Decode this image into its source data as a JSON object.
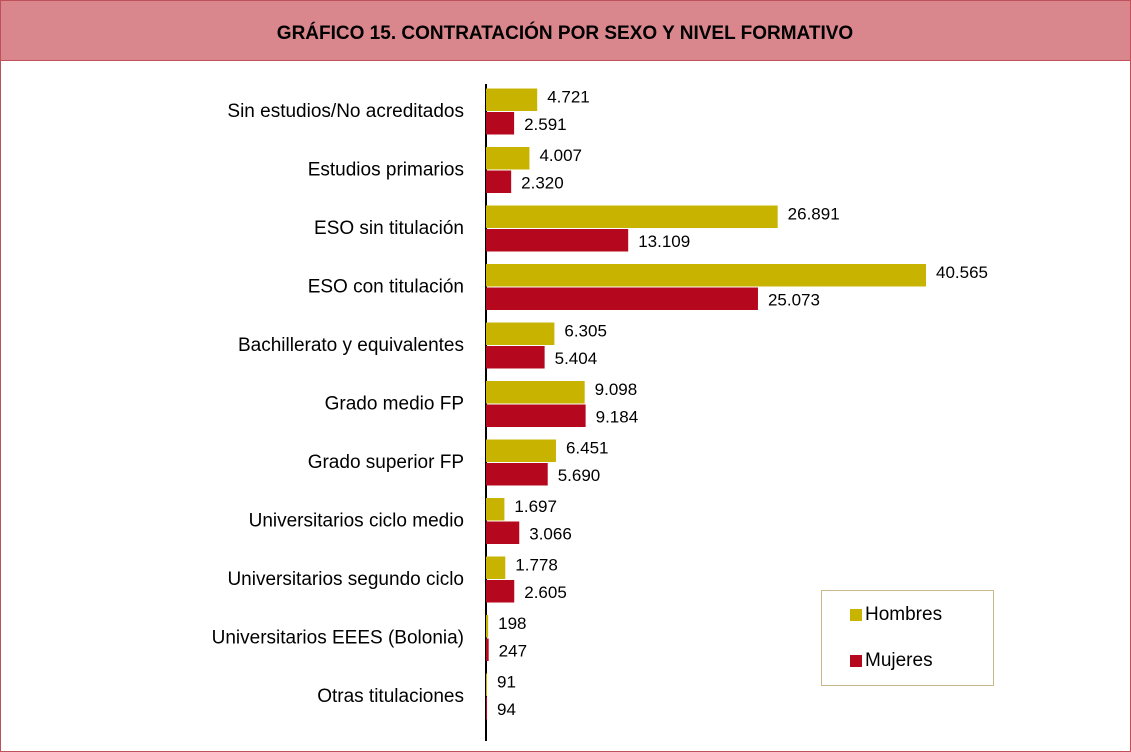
{
  "chart_data": {
    "type": "bar",
    "orientation": "horizontal",
    "title": "GRÁFICO 15. CONTRATACIÓN POR SEXO Y NIVEL FORMATIVO",
    "categories": [
      "Sin estudios/No acreditados",
      "Estudios primarios",
      "ESO sin titulación",
      "ESO con titulación",
      "Bachillerato y equivalentes",
      "Grado medio FP",
      "Grado superior FP",
      "Universitarios ciclo medio",
      "Universitarios segundo ciclo",
      "Universitarios EEES (Bolonia)",
      "Otras titulaciones"
    ],
    "series": [
      {
        "name": "Hombres",
        "color": "#c8b400",
        "values": [
          4721,
          4007,
          26891,
          40565,
          6305,
          9098,
          6451,
          1697,
          1778,
          198,
          91
        ],
        "value_labels": [
          "4.721",
          "4.007",
          "26.891",
          "40.565",
          "6.305",
          "9.098",
          "6.451",
          "1.697",
          "1.778",
          "198",
          "91"
        ]
      },
      {
        "name": "Mujeres",
        "color": "#b5081e",
        "values": [
          2591,
          2320,
          13109,
          25073,
          5404,
          9184,
          5690,
          3066,
          2605,
          247,
          94
        ],
        "value_labels": [
          "2.591",
          "2.320",
          "13.109",
          "25.073",
          "5.404",
          "9.184",
          "5.690",
          "3.066",
          "2.605",
          "247",
          "94"
        ]
      }
    ],
    "legend": "lower-right"
  }
}
